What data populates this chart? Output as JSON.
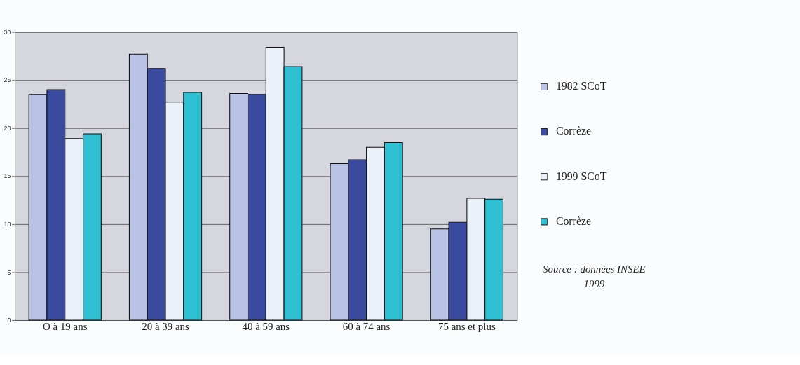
{
  "chart_data": {
    "type": "bar",
    "categories": [
      "O à 19 ans",
      "20 à 39 ans",
      "40 à 59 ans",
      "60 à 74 ans",
      "75 ans et plus"
    ],
    "series": [
      {
        "name": "1982 SCoT",
        "color": "#b9c3e6",
        "values": [
          23.5,
          27.7,
          23.6,
          16.3,
          9.5
        ]
      },
      {
        "name": "Corrèze",
        "color": "#3a4b9f",
        "values": [
          24.0,
          26.2,
          23.5,
          16.7,
          10.2
        ]
      },
      {
        "name": "1999 SCoT",
        "color": "#eaf1f8",
        "values": [
          18.9,
          22.7,
          28.4,
          18.0,
          12.7
        ]
      },
      {
        "name": "Corrèze",
        "color": "#2ec0d2",
        "values": [
          19.4,
          23.7,
          26.4,
          18.5,
          12.6
        ]
      }
    ],
    "ylim": [
      0,
      30
    ],
    "yticks": [
      0,
      5,
      10,
      15,
      20,
      25,
      30
    ],
    "grid": "y",
    "legend": "right",
    "annotations": [
      "Source : données INSEE 1999"
    ]
  }
}
